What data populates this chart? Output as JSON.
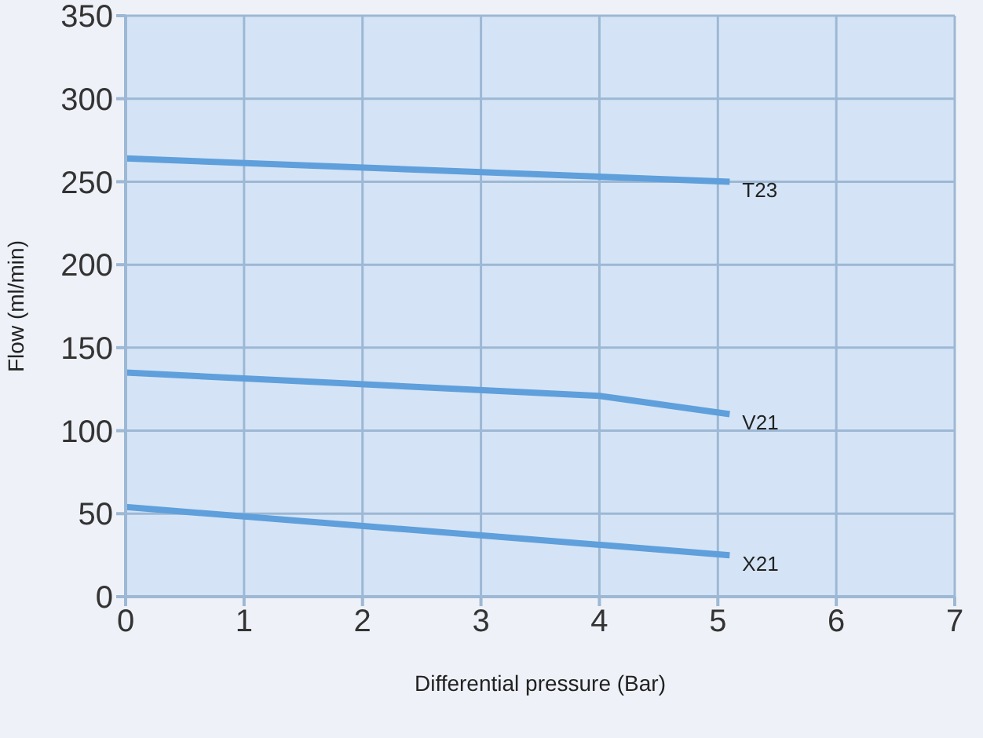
{
  "chart_data": {
    "type": "line",
    "xlabel": "Differential pressure (Bar)",
    "ylabel": "Flow (ml/min)",
    "xlim": [
      0,
      7
    ],
    "xticks": [
      0,
      1,
      2,
      3,
      4,
      5,
      6,
      7
    ],
    "ylim": [
      0,
      350
    ],
    "yticks": [
      0,
      50,
      100,
      150,
      200,
      250,
      300,
      350
    ],
    "grid": true,
    "legend": false,
    "marker": "none",
    "line_style": "solid",
    "series": [
      {
        "name": "T23",
        "color": "#5f9fdb",
        "x": [
          0,
          5.1
        ],
        "values": [
          264,
          250
        ]
      },
      {
        "name": "V21",
        "color": "#5f9fdb",
        "x": [
          0,
          4,
          5.1
        ],
        "values": [
          135,
          121,
          110
        ]
      },
      {
        "name": "X21",
        "color": "#5f9fdb",
        "x": [
          0,
          5.1
        ],
        "values": [
          54,
          25
        ]
      }
    ]
  }
}
